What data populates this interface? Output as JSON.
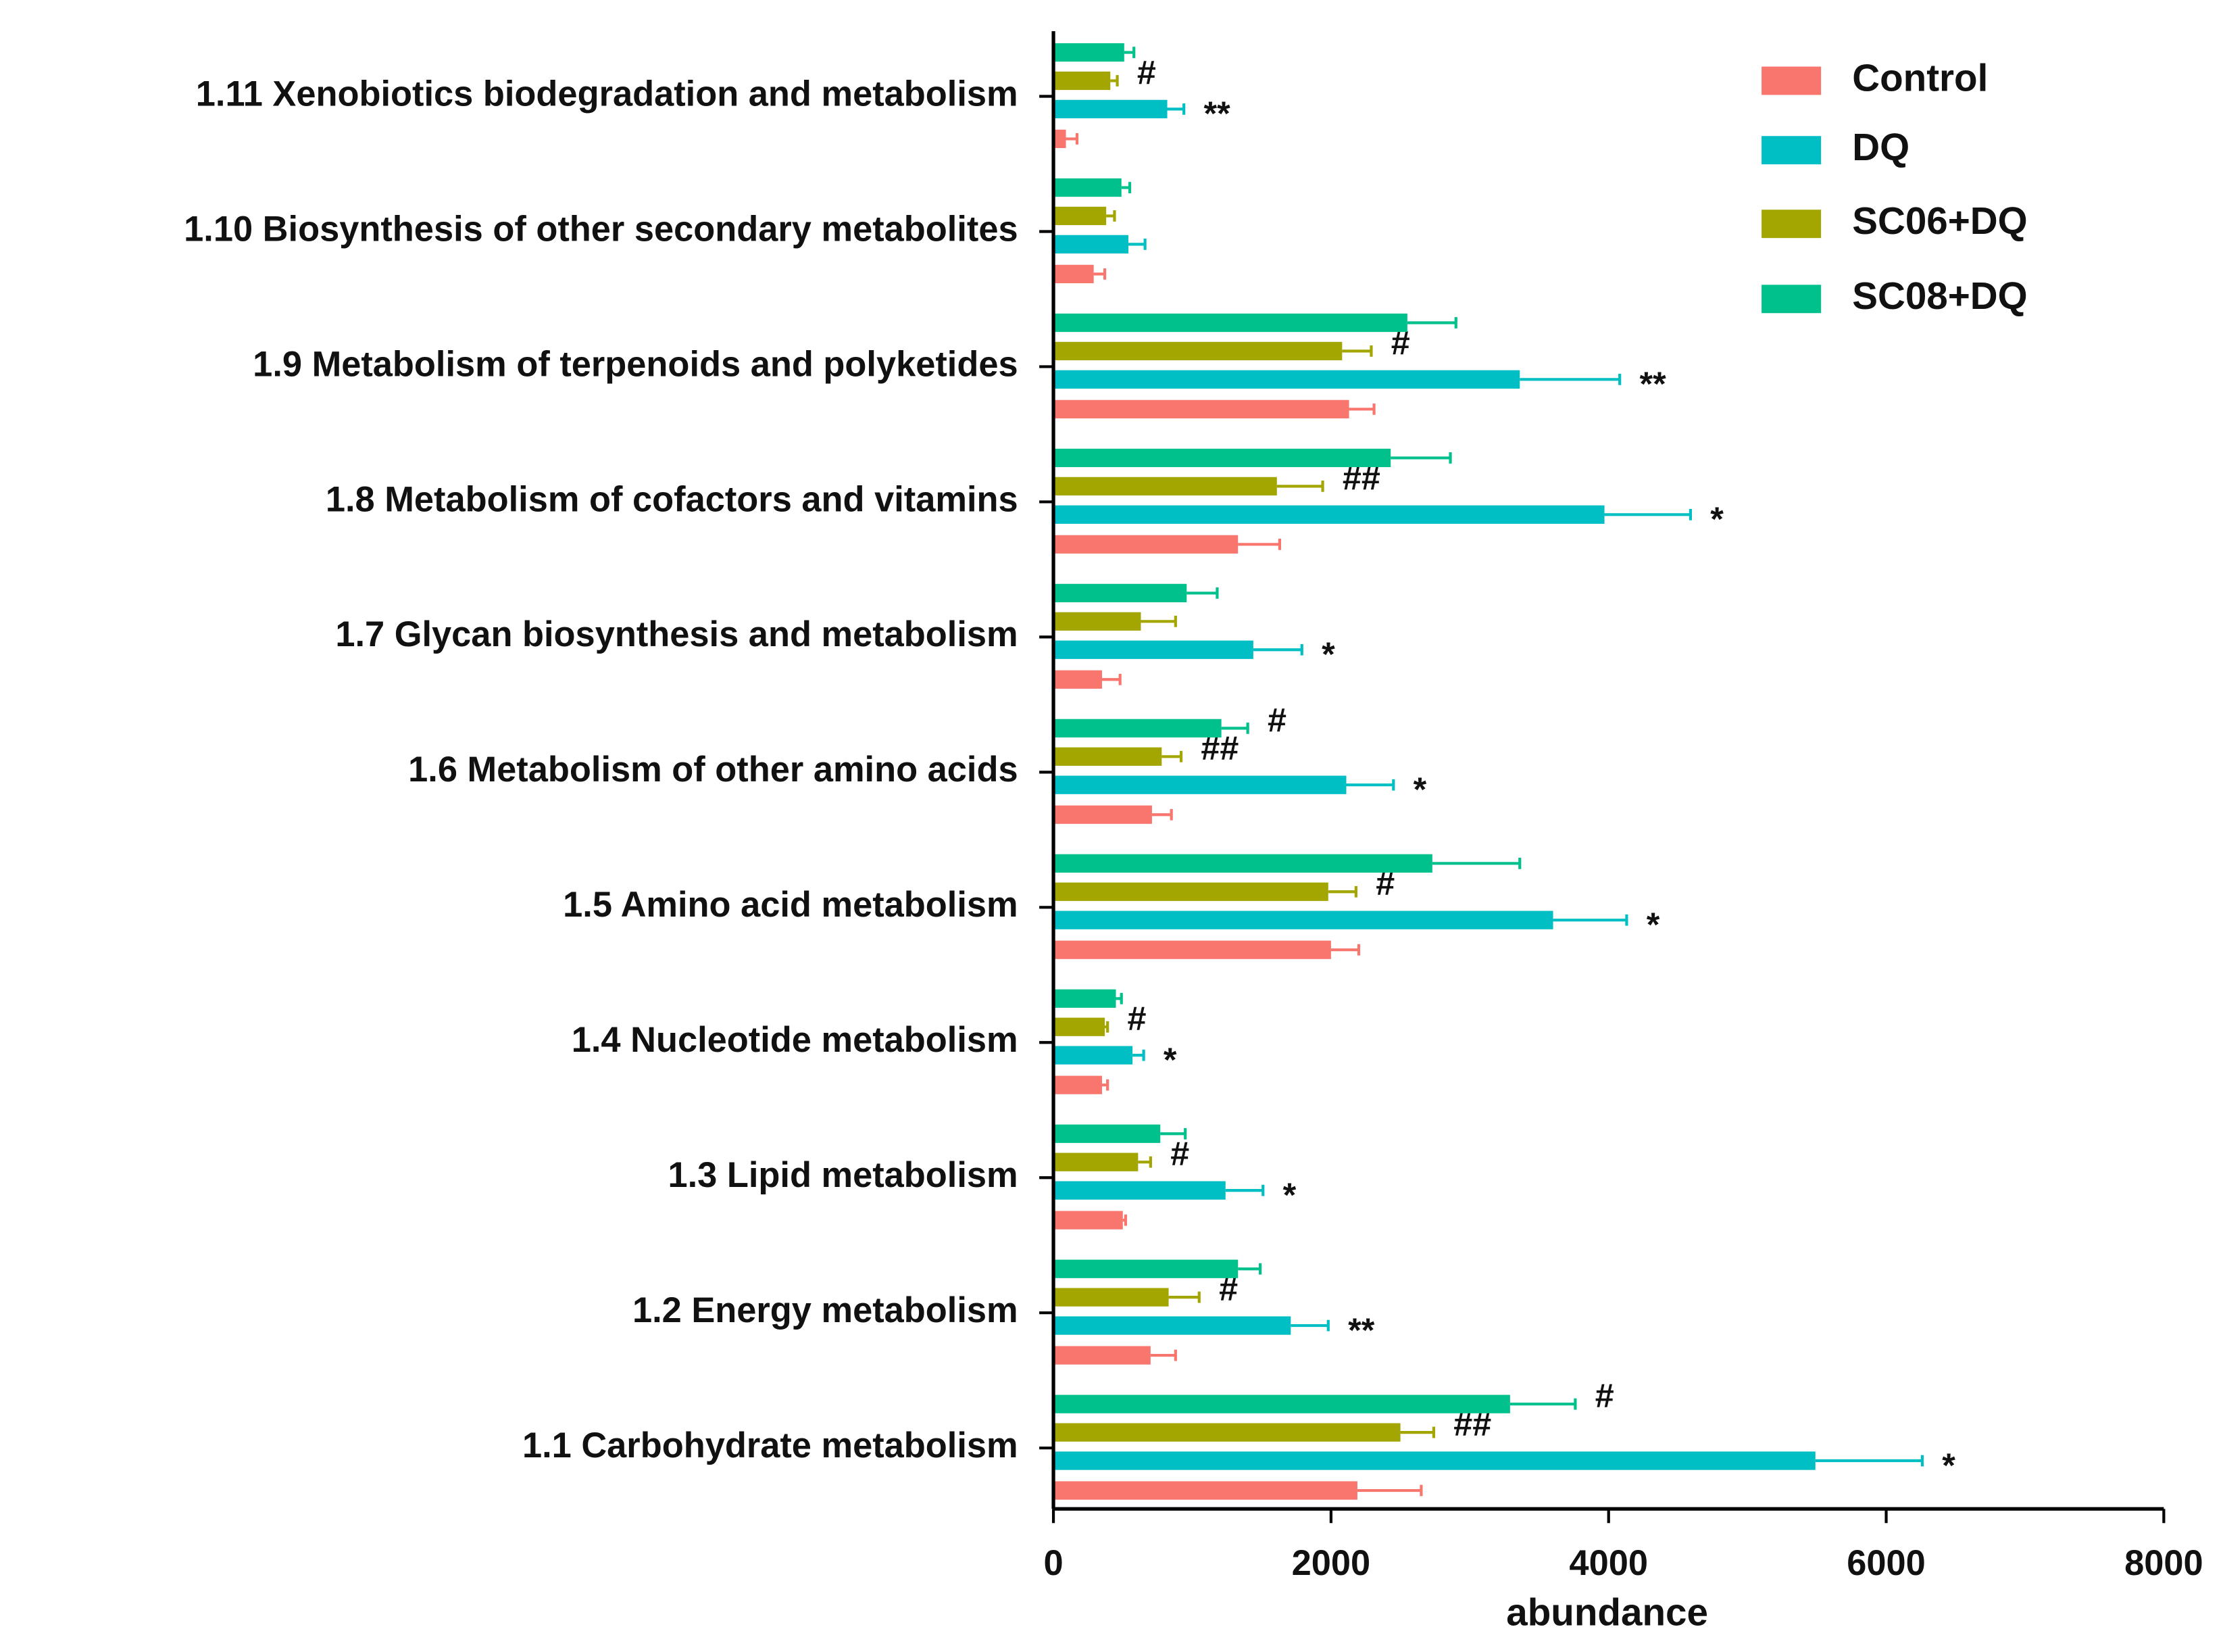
{
  "chart_data": {
    "type": "bar",
    "orientation": "horizontal",
    "xlabel": "abundance",
    "categories": [
      "1.11 Xenobiotics biodegradation and metabolism",
      "1.10 Biosynthesis of other secondary metabolites",
      "1.9 Metabolism of terpenoids and polyketides",
      "1.8 Metabolism of cofactors and vitamins",
      "1.7 Glycan biosynthesis and metabolism",
      "1.6 Metabolism of other amino acids",
      "1.5 Amino acid metabolism",
      "1.4 Nucleotide metabolism",
      "1.3 Lipid metabolism",
      "1.2 Energy metabolism",
      "1.1 Carbohydrate metabolism"
    ],
    "series": [
      {
        "name": "Control",
        "color": "#f8766d",
        "values": [
          90,
          290,
          2130,
          1330,
          350,
          710,
          2000,
          350,
          500,
          700,
          2190
        ],
        "errors": [
          80,
          80,
          180,
          300,
          130,
          140,
          200,
          40,
          20,
          180,
          460
        ],
        "annotations": [
          null,
          null,
          null,
          null,
          null,
          null,
          null,
          null,
          null,
          null,
          null
        ]
      },
      {
        "name": "DQ",
        "color": "#00bfc4",
        "values": [
          820,
          540,
          3360,
          3970,
          1440,
          2110,
          3600,
          570,
          1240,
          1710,
          5490
        ],
        "errors": [
          120,
          120,
          720,
          620,
          350,
          340,
          530,
          80,
          270,
          270,
          770
        ],
        "annotations": [
          "**",
          null,
          "**",
          "*",
          "*",
          "*",
          "*",
          "*",
          "*",
          "**",
          "*"
        ]
      },
      {
        "name": "SC06+DQ",
        "color": "#a3a500",
        "values": [
          410,
          380,
          2080,
          1610,
          630,
          780,
          1980,
          370,
          610,
          830,
          2500
        ],
        "errors": [
          50,
          60,
          210,
          330,
          250,
          140,
          200,
          20,
          90,
          220,
          240
        ],
        "annotations": [
          "#",
          null,
          "#",
          "##",
          null,
          "##",
          "#",
          "#",
          "#",
          "#",
          "##"
        ]
      },
      {
        "name": "SC08+DQ",
        "color": "#00c08b",
        "values": [
          510,
          490,
          2550,
          2430,
          960,
          1210,
          2730,
          450,
          770,
          1330,
          3290
        ],
        "errors": [
          70,
          60,
          350,
          430,
          220,
          190,
          630,
          40,
          180,
          160,
          470
        ],
        "annotations": [
          null,
          null,
          null,
          null,
          null,
          "#",
          null,
          null,
          null,
          null,
          "#"
        ]
      }
    ],
    "xlim": [
      0,
      8000
    ],
    "xticks": [
      0,
      2000,
      4000,
      6000,
      8000
    ],
    "legend": "upper right"
  }
}
